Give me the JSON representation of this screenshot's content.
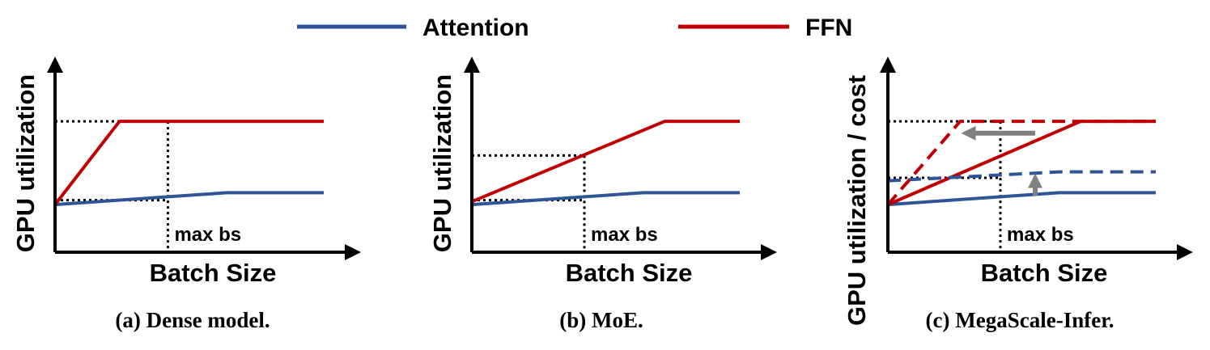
{
  "legend": [
    {
      "label": "Attention",
      "color": "#2f5597"
    },
    {
      "label": "FFN",
      "color": "#c00000"
    }
  ],
  "colors": {
    "attention": "#2f5597",
    "ffn": "#c00000",
    "arrow": "#808080",
    "axis": "#000000"
  },
  "chart_data": [
    {
      "type": "line",
      "caption": "(a) Dense model.",
      "xlabel": "Batch Size",
      "ylabel": "GPU utilization",
      "annotation": "max bs",
      "xlim": [
        0,
        100
      ],
      "ylim": [
        0,
        100
      ],
      "max_bs": 42,
      "series": [
        {
          "name": "Attention",
          "style": "solid",
          "x": [
            0,
            64,
            100
          ],
          "y": [
            32,
            40,
            40
          ]
        },
        {
          "name": "FFN",
          "style": "solid",
          "x": [
            0,
            24,
            100
          ],
          "y": [
            32,
            88,
            88
          ]
        }
      ],
      "guides": [
        {
          "at_x": 42,
          "y": 88,
          "vertical": true
        },
        {
          "at_x": 42,
          "y": 35,
          "vertical": false
        }
      ]
    },
    {
      "type": "line",
      "caption": "(b) MoE.",
      "xlabel": "Batch Size",
      "ylabel": "GPU utilization",
      "annotation": "max bs",
      "xlim": [
        0,
        100
      ],
      "ylim": [
        0,
        100
      ],
      "max_bs": 42,
      "series": [
        {
          "name": "Attention",
          "style": "solid",
          "x": [
            0,
            64,
            100
          ],
          "y": [
            32,
            40,
            40
          ]
        },
        {
          "name": "FFN",
          "style": "solid",
          "x": [
            0,
            72,
            100
          ],
          "y": [
            34,
            88,
            88
          ]
        }
      ],
      "guides": [
        {
          "at_x": 42,
          "y": 65,
          "vertical": true
        },
        {
          "at_x": 42,
          "y": 35,
          "vertical": false
        }
      ]
    },
    {
      "type": "line",
      "caption": "(c) MegaScale-Infer.",
      "xlabel": "Batch Size",
      "ylabel": "GPU utilization / cost",
      "annotation": "max bs",
      "xlim": [
        0,
        100
      ],
      "ylim": [
        0,
        100
      ],
      "max_bs": 42,
      "series": [
        {
          "name": "Attention",
          "style": "solid",
          "x": [
            0,
            64,
            100
          ],
          "y": [
            32,
            40,
            40
          ]
        },
        {
          "name": "FFN",
          "style": "solid",
          "x": [
            0,
            72,
            100
          ],
          "y": [
            32,
            88,
            88
          ]
        },
        {
          "name": "Attention",
          "style": "dashed",
          "x": [
            0,
            64,
            100
          ],
          "y": [
            48,
            54,
            54
          ]
        },
        {
          "name": "FFN",
          "style": "dashed",
          "x": [
            0,
            27,
            100
          ],
          "y": [
            32,
            88,
            88
          ]
        }
      ],
      "guides": [
        {
          "at_x": 42,
          "y": 88,
          "vertical": true
        },
        {
          "at_x": 42,
          "y": 50,
          "vertical": false
        }
      ],
      "arrows": [
        {
          "from": [
            55,
            80
          ],
          "to": [
            29,
            80
          ]
        },
        {
          "from": [
            55,
            38
          ],
          "to": [
            55,
            50
          ]
        }
      ]
    }
  ]
}
